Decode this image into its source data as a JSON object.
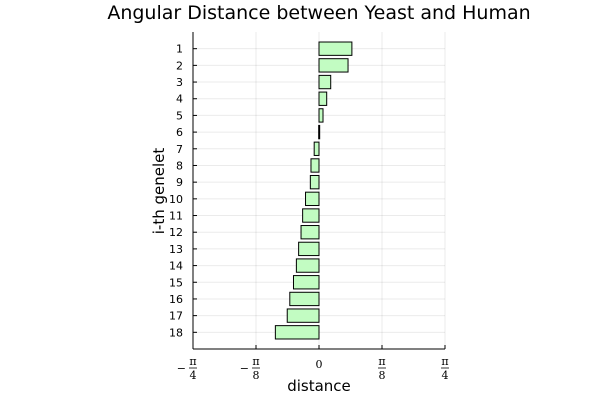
{
  "chart_data": {
    "type": "bar",
    "orientation": "horizontal",
    "title": "Angular Distance between Yeast and Human",
    "xlabel": "distance",
    "ylabel": "i-th genelet",
    "categories": [
      "1",
      "2",
      "3",
      "4",
      "5",
      "6",
      "7",
      "8",
      "9",
      "10",
      "11",
      "12",
      "13",
      "14",
      "15",
      "16",
      "17",
      "18"
    ],
    "values": [
      0.205,
      0.181,
      0.073,
      0.048,
      0.025,
      -0.002,
      -0.03,
      -0.05,
      -0.054,
      -0.084,
      -0.102,
      -0.112,
      -0.127,
      -0.141,
      -0.159,
      -0.182,
      -0.198,
      -0.272
    ],
    "xlim": [
      -0.7854,
      0.7854
    ],
    "ylim": [
      0,
      19
    ],
    "x_ticks": [
      {
        "value": -0.7854,
        "sign": "−",
        "num": "π",
        "den": "4"
      },
      {
        "value": -0.3927,
        "sign": "−",
        "num": "π",
        "den": "8"
      },
      {
        "value": 0,
        "sign": "",
        "num": "0",
        "den": ""
      },
      {
        "value": 0.3927,
        "sign": "",
        "num": "π",
        "den": "8"
      },
      {
        "value": 0.7854,
        "sign": "",
        "num": "π",
        "den": "4"
      }
    ],
    "grid": true,
    "bar_color": "#c2fcc2"
  }
}
